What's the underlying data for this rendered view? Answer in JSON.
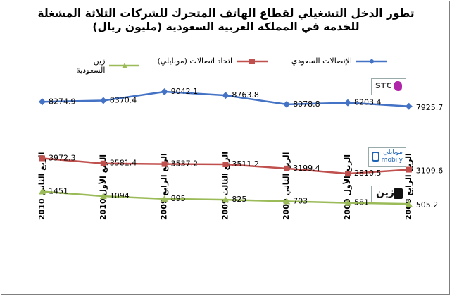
{
  "title": {
    "line1": "تطور الدخل التشغيلي لقطاع الهاتف المتحرك للشركات الثلاثة المشغلة",
    "line2": "للخدمة في المملكة العربية السعودية (مليون ريال)"
  },
  "logos": {
    "stc": "stc",
    "mobily_ar": "موبايلي",
    "mobily_en": "mobily",
    "zain_ar": "زين"
  },
  "chart_data": {
    "type": "line",
    "title": "تطور الدخل التشغيلي لقطاع الهاتف المتحرك للشركات الثلاثة المشغلة للخدمة في المملكة العربية السعودية (مليون ريال)",
    "categories": [
      "الربع الثاني 2010",
      "الربع الأول 2010",
      "الربع الرابع 2009",
      "الربع الثالث 2009",
      "الربع الثاني 2009",
      "الربع الأول 2009",
      "الربع الرابع 2008"
    ],
    "series": [
      {
        "name": "الإتصالات السعودي",
        "color": "#4472c4",
        "marker": "diamond",
        "values": [
          8274.9,
          8370.4,
          9042.1,
          8763.8,
          8078.8,
          8203.4,
          7925.7
        ]
      },
      {
        "name": "اتحاد اتصالات (موبايلي)",
        "color": "#c0504d",
        "marker": "square",
        "values": [
          3972.3,
          3581.4,
          3537.2,
          3511.2,
          3199.4,
          2810.5,
          3109.6
        ]
      },
      {
        "name": "زين السعودية",
        "color": "#9bbb59",
        "marker": "triangle",
        "values": [
          1451,
          1094,
          895,
          825,
          703,
          581,
          505.2
        ]
      }
    ],
    "legend_position": "top",
    "grid": false
  }
}
